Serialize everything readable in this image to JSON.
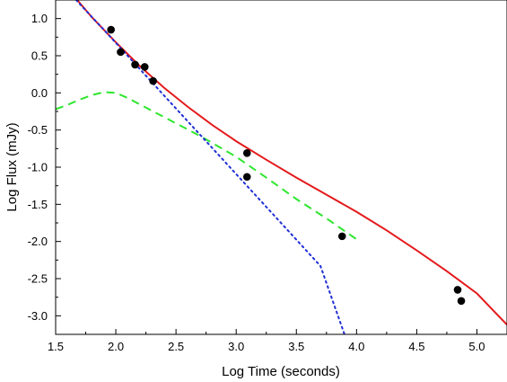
{
  "chart_data": {
    "type": "line",
    "title": "",
    "xlabel": "Log Time (seconds)",
    "ylabel": "Log Flux (mJy)",
    "xlim": [
      1.5,
      5.25
    ],
    "ylim": [
      -3.25,
      1.25
    ],
    "xticks": [
      1.5,
      2.0,
      2.5,
      3.0,
      3.5,
      4.0,
      4.5,
      5.0
    ],
    "xtick_labels": [
      "1.5",
      "2.0",
      "2.5",
      "3.0",
      "3.5",
      "4.0",
      "4.5",
      "5.0"
    ],
    "yticks": [
      1.0,
      0.5,
      0.0,
      -0.5,
      -1.0,
      -1.5,
      -2.0,
      -2.5,
      -3.0
    ],
    "ytick_labels": [
      "1.0",
      "0.5",
      "0.0",
      "-0.5",
      "-1.0",
      "-1.5",
      "-2.0",
      "-2.5",
      "-3.0"
    ],
    "grid": false,
    "legend": "none",
    "series": [
      {
        "kind": "scatter",
        "color": "#000000",
        "marker": "filled-circle",
        "x": [
          1.96,
          2.04,
          2.16,
          2.24,
          2.31,
          3.09,
          3.09,
          3.88,
          4.84,
          4.87
        ],
        "y": [
          0.85,
          0.55,
          0.38,
          0.35,
          0.16,
          -0.81,
          -1.13,
          -1.93,
          -2.65,
          -2.8
        ]
      },
      {
        "kind": "line",
        "color": "#e41a1c",
        "style": "solid",
        "x": [
          1.68,
          1.8,
          2.0,
          2.2,
          2.4,
          2.6,
          2.8,
          3.0,
          3.25,
          3.5,
          3.75,
          4.0,
          4.25,
          4.5,
          4.75,
          5.0,
          5.25
        ],
        "y": [
          1.25,
          1.02,
          0.68,
          0.36,
          0.07,
          -0.19,
          -0.43,
          -0.65,
          -0.9,
          -1.14,
          -1.37,
          -1.6,
          -1.85,
          -2.12,
          -2.4,
          -2.7,
          -3.12
        ]
      },
      {
        "kind": "line",
        "color": "#2ee62e",
        "style": "dashed",
        "x": [
          1.5,
          1.6,
          1.7,
          1.8,
          1.9,
          2.0,
          2.1,
          2.3,
          2.5,
          2.7,
          3.0,
          3.25,
          3.5,
          3.75,
          4.0
        ],
        "y": [
          -0.22,
          -0.16,
          -0.09,
          -0.03,
          0.01,
          0.0,
          -0.07,
          -0.24,
          -0.41,
          -0.58,
          -0.86,
          -1.14,
          -1.43,
          -1.69,
          -1.97
        ]
      },
      {
        "kind": "line",
        "color": "#1f2fd6",
        "style": "dotted",
        "x": [
          1.67,
          1.9,
          2.2,
          2.5,
          2.8,
          3.1,
          3.4,
          3.7,
          3.9
        ],
        "y": [
          1.25,
          0.85,
          0.32,
          -0.21,
          -0.74,
          -1.27,
          -1.8,
          -2.33,
          -3.25
        ]
      }
    ]
  }
}
